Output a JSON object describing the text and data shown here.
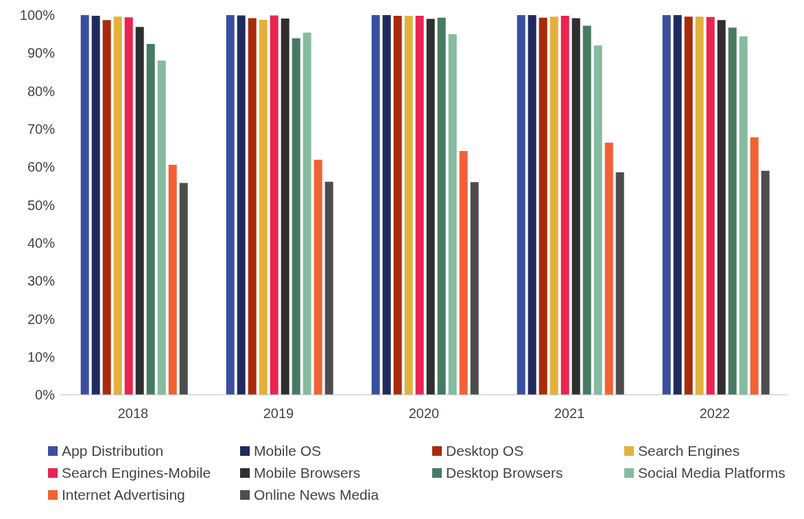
{
  "chart_data": {
    "type": "bar",
    "categories": [
      "2018",
      "2019",
      "2020",
      "2021",
      "2022"
    ],
    "series": [
      {
        "name": "App Distribution",
        "color": "#3a4fa0",
        "values": [
          100,
          100,
          100,
          100,
          100
        ]
      },
      {
        "name": "Mobile OS",
        "color": "#1f2b5e",
        "values": [
          99.8,
          99.9,
          100,
          100,
          100
        ]
      },
      {
        "name": "Desktop OS",
        "color": "#a82b0c",
        "values": [
          98.7,
          99.2,
          99.8,
          99.3,
          99.6
        ]
      },
      {
        "name": "Search Engines",
        "color": "#e2b13c",
        "values": [
          99.6,
          98.8,
          99.8,
          99.6,
          99.6
        ]
      },
      {
        "name": "Search Engines-Mobile",
        "color": "#eb2350",
        "values": [
          99.4,
          99.9,
          99.8,
          99.8,
          99.5
        ]
      },
      {
        "name": "Mobile Browsers",
        "color": "#2f2f2f",
        "values": [
          96.9,
          99.1,
          99.0,
          99.2,
          98.7
        ]
      },
      {
        "name": "Desktop Browsers",
        "color": "#477a62",
        "values": [
          92.4,
          93.9,
          99.3,
          97.2,
          96.7
        ]
      },
      {
        "name": "Social Media Platforms",
        "color": "#86bba0",
        "values": [
          88.0,
          95.4,
          95.0,
          92.0,
          94.4
        ]
      },
      {
        "name": "Internet Advertising",
        "color": "#f26135",
        "values": [
          60.6,
          61.9,
          64.2,
          66.4,
          67.8
        ]
      },
      {
        "name": "Online News Media",
        "color": "#4d4d4d",
        "values": [
          55.8,
          56.1,
          56.0,
          58.6,
          59.0
        ]
      }
    ],
    "ylim": [
      0,
      100
    ],
    "yticks": [
      {
        "value": 0,
        "label": "0%"
      },
      {
        "value": 10,
        "label": "10%"
      },
      {
        "value": 20,
        "label": "20%"
      },
      {
        "value": 30,
        "label": "30%"
      },
      {
        "value": 40,
        "label": "40%"
      },
      {
        "value": 50,
        "label": "50%"
      },
      {
        "value": 60,
        "label": "60%"
      },
      {
        "value": 70,
        "label": "70%"
      },
      {
        "value": 80,
        "label": "80%"
      },
      {
        "value": 90,
        "label": "90%"
      },
      {
        "value": 100,
        "label": "100%"
      }
    ],
    "legend": "bottom"
  }
}
